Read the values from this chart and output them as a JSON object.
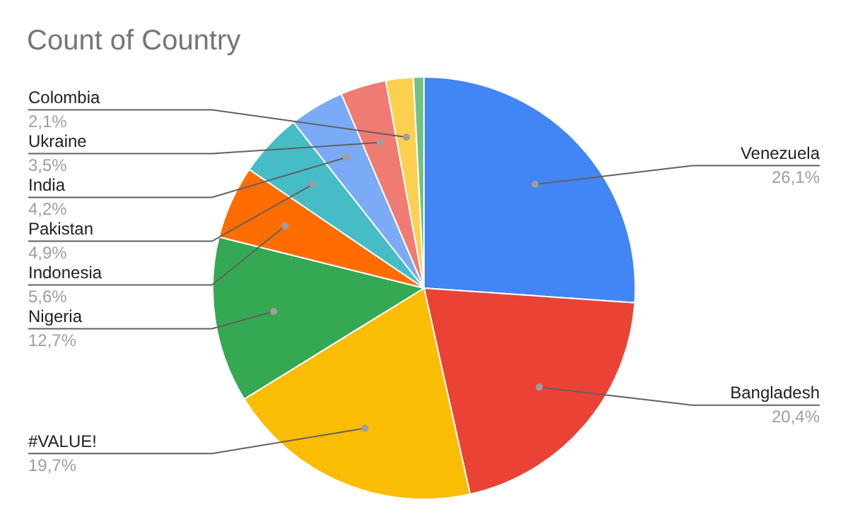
{
  "chart_data": {
    "type": "pie",
    "title": "Count of Country",
    "categories": [
      "Venezuela",
      "Bangladesh",
      "#VALUE!",
      "Nigeria",
      "Indonesia",
      "Pakistan",
      "India",
      "Ukraine",
      "Colombia",
      null
    ],
    "values": [
      26.1,
      20.4,
      19.7,
      12.7,
      5.6,
      4.9,
      4.2,
      3.5,
      2.1,
      0.8
    ],
    "colors": [
      "#4285f4",
      "#ea4335",
      "#fbbc04",
      "#34a853",
      "#ff6d01",
      "#46bdc6",
      "#7baaf7",
      "#f07b72",
      "#fcd04f",
      "#71c287"
    ],
    "value_labels": [
      "26,1%",
      "20,4%",
      "19,7%",
      "12,7%",
      "5,6%",
      "4,9%",
      "4,2%",
      "3,5%",
      "2,1%",
      null
    ]
  }
}
